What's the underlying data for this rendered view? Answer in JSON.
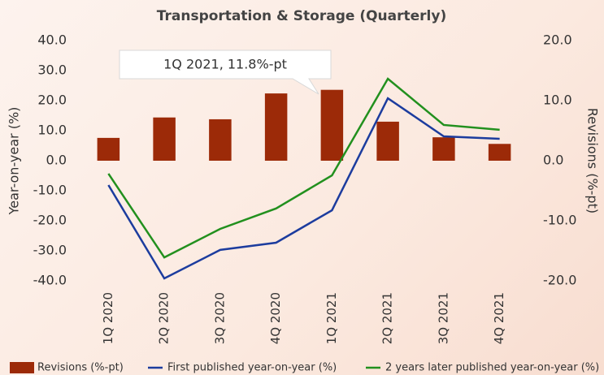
{
  "chart_data": {
    "type": "bar+line",
    "title": "Transportation & Storage (Quarterly)",
    "y_label": "Year-on-year (%)",
    "y2_label": "Revisions (%-pt)",
    "annotation": "1Q 2021, 11.8%-pt",
    "categories": [
      "1Q 2020",
      "2Q 2020",
      "3Q 2020",
      "4Q 2020",
      "1Q 2021",
      "2Q 2021",
      "3Q 2021",
      "4Q 2021"
    ],
    "ylim": [
      -40,
      40
    ],
    "yticks": [
      {
        "value": 40,
        "label": "40.0"
      },
      {
        "value": 30,
        "label": "30.0"
      },
      {
        "value": 20,
        "label": "20.0"
      },
      {
        "value": 10,
        "label": "10.0"
      },
      {
        "value": 0,
        "label": "0.0"
      },
      {
        "value": -10,
        "label": "-10.0"
      },
      {
        "value": -20,
        "label": "-20.0"
      },
      {
        "value": -30,
        "label": "-30.0"
      },
      {
        "value": -40,
        "label": "-40.0"
      }
    ],
    "y2lim": [
      -20,
      20
    ],
    "y2ticks": [
      {
        "value": 20,
        "label": "20.0"
      },
      {
        "value": 10,
        "label": "10.0"
      },
      {
        "value": 0,
        "label": "0.0"
      },
      {
        "value": -10,
        "label": "-10.0"
      },
      {
        "value": -20,
        "label": "-20.0"
      }
    ],
    "series": [
      {
        "name": "Revisions (%-pt)",
        "type": "bar",
        "axis": "y2",
        "color": "#9c2a08",
        "values": [
          3.8,
          7.2,
          6.9,
          11.2,
          11.8,
          6.5,
          3.9,
          2.8
        ]
      },
      {
        "name": "First published year-on-year (%)",
        "type": "line",
        "color": "#1c3c9e",
        "values": [
          -8.1,
          -39.2,
          -29.7,
          -27.3,
          -16.5,
          20.8,
          8.1,
          7.3
        ]
      },
      {
        "name": "2 years later published year-on-year (%)",
        "type": "line",
        "color": "#22901e",
        "values": [
          -4.3,
          -32.2,
          -22.7,
          -15.9,
          -4.9,
          27.3,
          11.9,
          10.3
        ]
      }
    ]
  }
}
